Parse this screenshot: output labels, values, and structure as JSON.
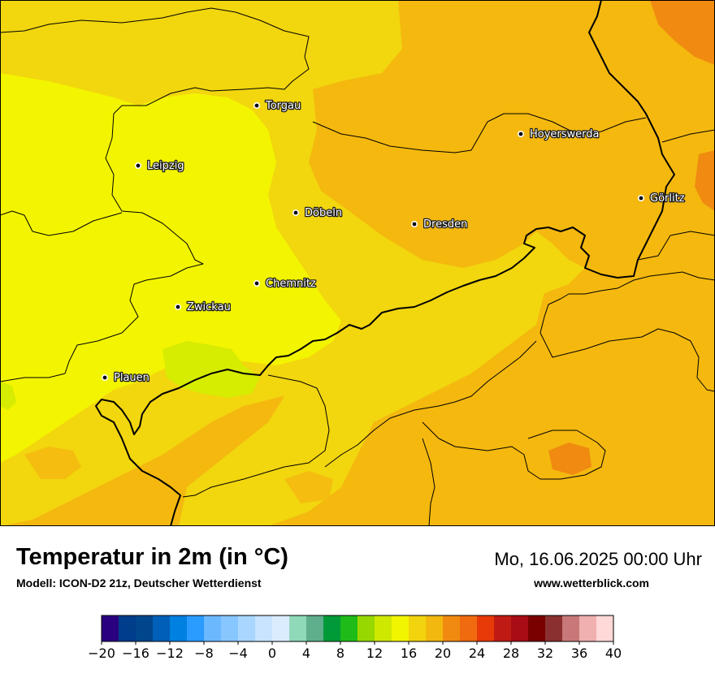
{
  "map": {
    "cities": [
      {
        "name": "Torgau"
      },
      {
        "name": "Hoyerswerda"
      },
      {
        "name": "Leipzig"
      },
      {
        "name": "Görlitz"
      },
      {
        "name": "Döbeln"
      },
      {
        "name": "Dresden"
      },
      {
        "name": "Chemnitz"
      },
      {
        "name": "Zwickau"
      },
      {
        "name": "Plauen"
      }
    ],
    "colors": {
      "warm_orange": "#f4b80f",
      "deep_orange": "#f08a10",
      "yellow": "#f2d60e",
      "bright_yellow": "#f3f500",
      "lime": "#d6ec00",
      "border": "#000000"
    }
  },
  "header": {
    "title": "Temperatur in 2m (in °C)",
    "subtitle": "Modell: ICON-D2 21z, Deutscher Wetterdienst",
    "datetime": "Mo, 16.06.2025 00:00 Uhr",
    "website": "www.wetterblick.com"
  },
  "legend": {
    "colors": [
      "#2a0080",
      "#003d8a",
      "#00468c",
      "#005fb8",
      "#0080e0",
      "#2a9bff",
      "#6cb8ff",
      "#88c6ff",
      "#a8d6ff",
      "#c8e4ff",
      "#dcecff",
      "#8fd9b8",
      "#5fae8c",
      "#009b38",
      "#1fbb18",
      "#96d800",
      "#cfe800",
      "#f2f500",
      "#f2d40e",
      "#f2b80f",
      "#f08a10",
      "#f06a10",
      "#e83a08",
      "#c01a14",
      "#a80c14",
      "#7a0000",
      "#8a3030",
      "#c87878",
      "#f0b0b0",
      "#ffd8d8"
    ],
    "ticks": [
      "−20",
      "−16",
      "−12",
      "−8",
      "−4",
      "0",
      "4",
      "8",
      "12",
      "16",
      "20",
      "24",
      "28",
      "32",
      "36",
      "40"
    ]
  }
}
